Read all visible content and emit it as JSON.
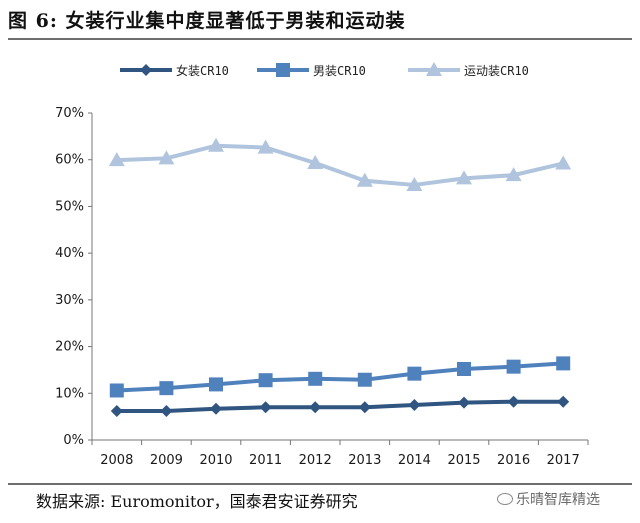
{
  "figure": {
    "title": "图  6:  女装行业集中度显著低于男装和运动装",
    "source": "数据来源:  Euromonitor，国泰君安证券研究",
    "watermark": "乐晴智库精选"
  },
  "chart_data": {
    "type": "line",
    "title": "女装行业集中度显著低于男装和运动装",
    "xlabel": "",
    "ylabel": "",
    "categories": [
      "2008",
      "2009",
      "2010",
      "2011",
      "2012",
      "2013",
      "2014",
      "2015",
      "2016",
      "2017"
    ],
    "ylim": [
      0,
      70
    ],
    "yticks": [
      "0%",
      "10%",
      "20%",
      "30%",
      "40%",
      "50%",
      "60%",
      "70%"
    ],
    "grid": false,
    "legend_position": "top",
    "series": [
      {
        "name": "女装CR10",
        "marker": "diamond",
        "color": "#2f5580",
        "values": [
          6.2,
          6.2,
          6.7,
          7.0,
          7.0,
          7.0,
          7.5,
          8.0,
          8.2,
          8.2
        ]
      },
      {
        "name": "男装CR10",
        "marker": "square",
        "color": "#4f81bd",
        "values": [
          10.6,
          11.1,
          11.9,
          12.8,
          13.1,
          12.9,
          14.2,
          15.2,
          15.7,
          16.4
        ]
      },
      {
        "name": "运动装CR10",
        "marker": "triangle",
        "color": "#b0c4de",
        "values": [
          59.9,
          60.3,
          63.0,
          62.6,
          59.3,
          55.5,
          54.6,
          56.0,
          56.7,
          59.2
        ]
      }
    ]
  }
}
